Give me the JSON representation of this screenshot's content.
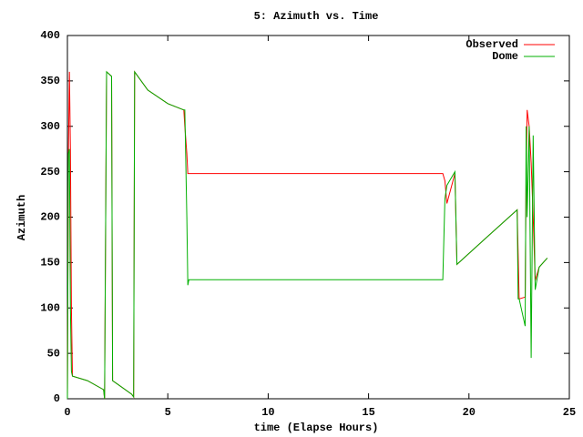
{
  "chart_data": {
    "type": "line",
    "title": "5: Azimuth vs. Time",
    "x_label": "time (Elapse Hours)",
    "y_label": "Azimuth",
    "x": [
      0,
      0.05,
      0.1,
      0.15,
      0.2,
      0.25,
      1,
      1.8,
      1.85,
      1.95,
      2.2,
      2.25,
      3.2,
      3.3,
      3.35,
      4,
      5,
      5.8,
      5.85,
      5.95,
      6.0,
      6.05,
      18.7,
      18.8,
      18.9,
      19.3,
      19.4,
      21,
      22.4,
      22.45,
      22.5,
      22.8,
      22.85,
      22.9,
      23.0,
      23.1,
      23.2,
      23.3,
      23.5,
      23.9
    ],
    "series": [
      {
        "name": "Observed",
        "color": "#ff0000",
        "values": [
          0,
          270,
          360,
          275,
          100,
          25,
          20,
          10,
          0,
          360,
          355,
          20,
          5,
          2,
          360,
          340,
          325,
          318,
          300,
          270,
          248,
          248,
          248,
          240,
          215,
          248,
          148,
          180,
          208,
          160,
          110,
          112,
          250,
          318,
          300,
          260,
          200,
          130,
          145,
          155
        ]
      },
      {
        "name": "Dome",
        "color": "#00b000",
        "values": [
          0,
          270,
          275,
          100,
          30,
          25,
          20,
          10,
          0,
          360,
          355,
          20,
          5,
          2,
          360,
          340,
          325,
          318,
          318,
          200,
          125,
          131,
          131,
          220,
          235,
          250,
          148,
          180,
          208,
          110,
          110,
          80,
          300,
          200,
          300,
          45,
          290,
          120,
          145,
          155
        ]
      }
    ],
    "xlim": [
      0,
      25
    ],
    "xticks": [
      0,
      5,
      10,
      15,
      20,
      25
    ],
    "ylim": [
      0,
      400
    ],
    "yticks": [
      0,
      50,
      100,
      150,
      200,
      250,
      300,
      350,
      400
    ],
    "legend": "top-right"
  }
}
